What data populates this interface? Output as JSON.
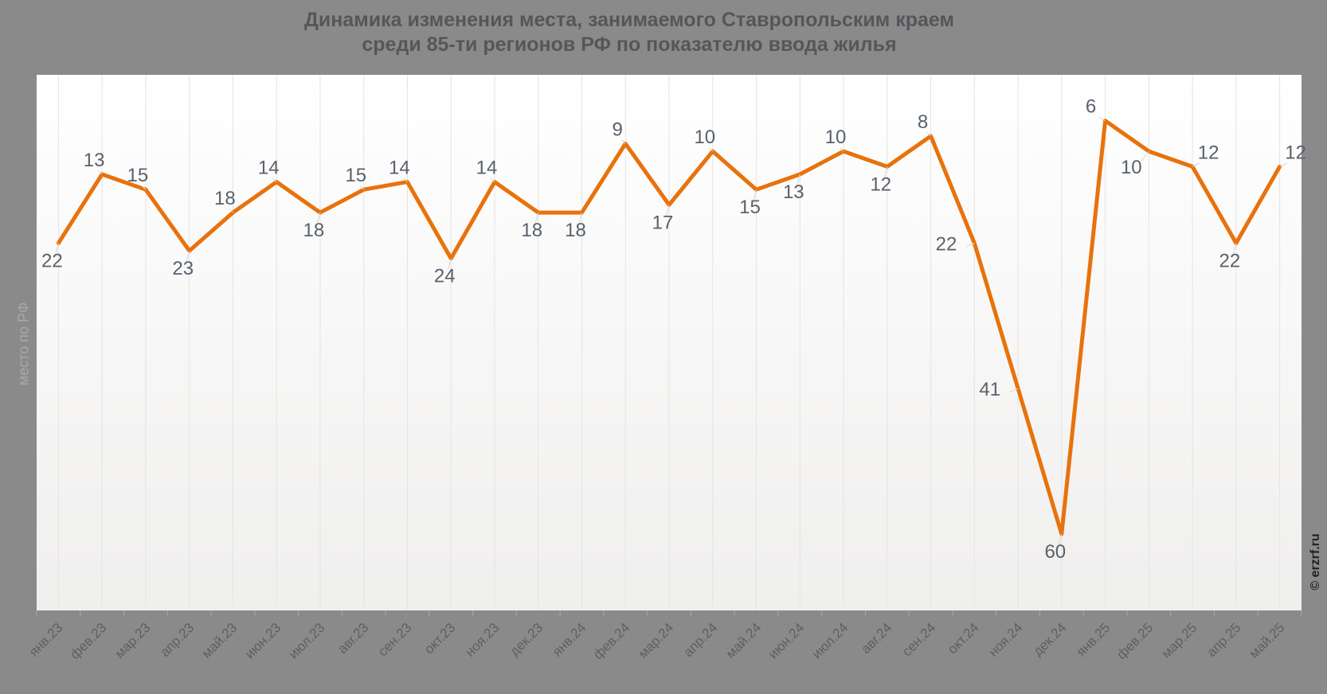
{
  "title": {
    "line1": "Динамика изменения места, занимаемого Ставропольским краем",
    "line2": "среди 85-ти регионов РФ по показателю ввода жилья"
  },
  "watermark": "© erzrf.ru",
  "chart_data": {
    "type": "line",
    "title": "Динамика изменения места, занимаемого Ставропольским краем среди 85-ти регионов РФ по показателю ввода жилья",
    "xlabel": "",
    "ylabel": "место по РФ",
    "categories": [
      "янв.23",
      "фев.23",
      "мар.23",
      "апр.23",
      "май.23",
      "июн.23",
      "июл.23",
      "авг.23",
      "сен.23",
      "окт.23",
      "ноя.23",
      "дек.23",
      "янв.24",
      "фев.24",
      "мар.24",
      "апр.24",
      "май.24",
      "июн.24",
      "июл.24",
      "авг.24",
      "сен.24",
      "окт.24",
      "ноя.24",
      "дек.24",
      "янв.25",
      "фев.25",
      "мар.25",
      "апр.25",
      "май.25"
    ],
    "values": [
      22,
      13,
      15,
      23,
      18,
      14,
      18,
      15,
      14,
      24,
      14,
      18,
      18,
      9,
      17,
      10,
      15,
      13,
      10,
      12,
      8,
      22,
      41,
      60,
      6,
      10,
      12,
      22,
      12
    ],
    "series_name": "место по РФ",
    "ylim": [
      0,
      70
    ],
    "y_axis_inverted": true,
    "grid": "vertical",
    "legend_position": "none",
    "colors": {
      "line": "#e8720c",
      "point_label": "#59616b",
      "outer_background": "#8a8a8a",
      "plot_background": "#ffffff",
      "gridline": "#e4e4e4",
      "axis_tick": "#a8a8a8",
      "x_tick_label": "#5f5f5f",
      "title": "#54575a",
      "y_axis_title": "#a9a9a9",
      "watermark": "#202020"
    }
  }
}
